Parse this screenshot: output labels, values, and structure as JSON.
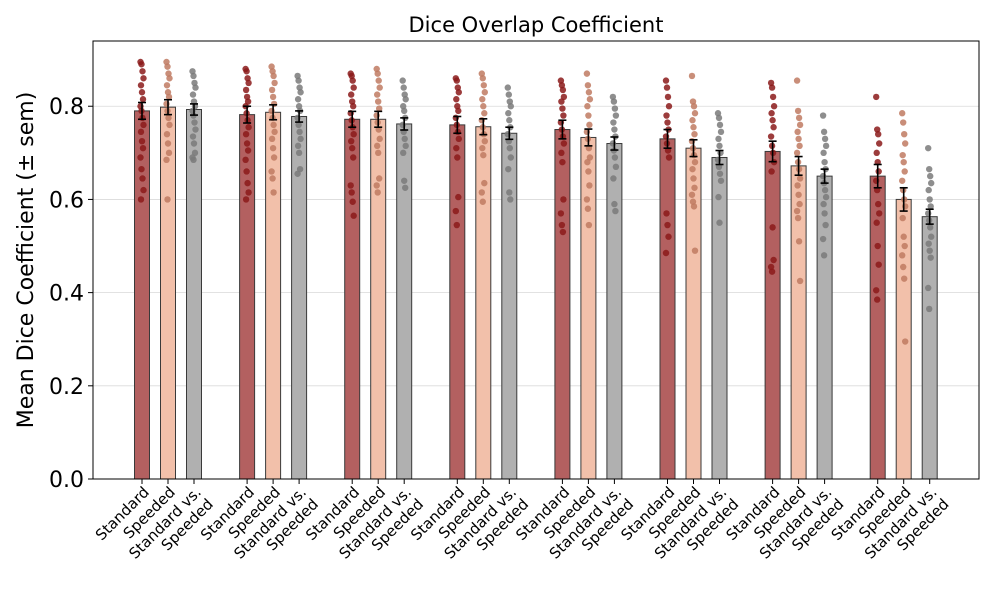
{
  "chart_data": {
    "type": "bar",
    "title": "Dice Overlap Coefficient",
    "xlabel": "",
    "ylabel": "Mean Dice Coefficient (± sem)",
    "ylim": [
      0,
      0.94
    ],
    "yticks": [
      "0.0",
      "0.2",
      "0.4",
      "0.6",
      "0.8"
    ],
    "grid": "horizontal",
    "group_count": 8,
    "bar_labels": [
      "Standard",
      "Speeded",
      "Standard vs.\nSpeeded"
    ],
    "series": [
      {
        "label": "Standard",
        "color": "#b36060",
        "dot_color": "#8b1a1a",
        "values": [
          0.79,
          0.782,
          0.772,
          0.76,
          0.75,
          0.73,
          0.703,
          0.65
        ],
        "sem": [
          0.018,
          0.018,
          0.017,
          0.018,
          0.02,
          0.02,
          0.022,
          0.025
        ],
        "points": [
          [
            0.895,
            0.89,
            0.875,
            0.86,
            0.845,
            0.83,
            0.815,
            0.8,
            0.79,
            0.775,
            0.76,
            0.745,
            0.725,
            0.71,
            0.69,
            0.665,
            0.645,
            0.62,
            0.6
          ],
          [
            0.88,
            0.875,
            0.86,
            0.85,
            0.835,
            0.82,
            0.81,
            0.8,
            0.785,
            0.77,
            0.755,
            0.74,
            0.72,
            0.705,
            0.685,
            0.66,
            0.635,
            0.615,
            0.6
          ],
          [
            0.87,
            0.865,
            0.855,
            0.84,
            0.825,
            0.81,
            0.8,
            0.785,
            0.77,
            0.755,
            0.74,
            0.725,
            0.71,
            0.69,
            0.63,
            0.615,
            0.595,
            0.565
          ],
          [
            0.86,
            0.855,
            0.84,
            0.83,
            0.815,
            0.8,
            0.79,
            0.775,
            0.76,
            0.745,
            0.73,
            0.71,
            0.69,
            0.605,
            0.575,
            0.545
          ],
          [
            0.855,
            0.845,
            0.835,
            0.82,
            0.81,
            0.795,
            0.78,
            0.765,
            0.75,
            0.735,
            0.72,
            0.7,
            0.68,
            0.6,
            0.57,
            0.545,
            0.53
          ],
          [
            0.855,
            0.84,
            0.82,
            0.8,
            0.78,
            0.765,
            0.75,
            0.735,
            0.72,
            0.705,
            0.69,
            0.57,
            0.545,
            0.52,
            0.485
          ],
          [
            0.85,
            0.84,
            0.82,
            0.8,
            0.785,
            0.77,
            0.755,
            0.735,
            0.715,
            0.7,
            0.68,
            0.66,
            0.54,
            0.47,
            0.455,
            0.445
          ],
          [
            0.82,
            0.75,
            0.74,
            0.72,
            0.7,
            0.68,
            0.66,
            0.64,
            0.62,
            0.59,
            0.57,
            0.55,
            0.5,
            0.46,
            0.405,
            0.385
          ]
        ]
      },
      {
        "label": "Speeded",
        "color": "#f2c0aa",
        "dot_color": "#c07a62",
        "values": [
          0.798,
          0.787,
          0.772,
          0.756,
          0.733,
          0.71,
          0.672,
          0.6
        ],
        "sem": [
          0.016,
          0.016,
          0.017,
          0.017,
          0.018,
          0.018,
          0.02,
          0.025
        ],
        "points": [
          [
            0.895,
            0.885,
            0.87,
            0.86,
            0.845,
            0.83,
            0.82,
            0.805,
            0.79,
            0.775,
            0.76,
            0.74,
            0.72,
            0.7,
            0.685,
            0.6
          ],
          [
            0.885,
            0.875,
            0.865,
            0.85,
            0.835,
            0.82,
            0.805,
            0.79,
            0.775,
            0.76,
            0.745,
            0.73,
            0.71,
            0.69,
            0.66,
            0.645,
            0.615
          ],
          [
            0.88,
            0.87,
            0.855,
            0.84,
            0.825,
            0.81,
            0.795,
            0.78,
            0.765,
            0.75,
            0.73,
            0.715,
            0.7,
            0.645,
            0.63,
            0.615
          ],
          [
            0.87,
            0.86,
            0.845,
            0.83,
            0.815,
            0.8,
            0.785,
            0.77,
            0.755,
            0.74,
            0.725,
            0.71,
            0.695,
            0.635,
            0.615,
            0.595
          ],
          [
            0.87,
            0.845,
            0.83,
            0.815,
            0.8,
            0.78,
            0.76,
            0.745,
            0.73,
            0.71,
            0.69,
            0.68,
            0.66,
            0.63,
            0.6,
            0.58,
            0.545
          ],
          [
            0.865,
            0.81,
            0.8,
            0.785,
            0.77,
            0.755,
            0.74,
            0.725,
            0.71,
            0.695,
            0.68,
            0.665,
            0.645,
            0.625,
            0.61,
            0.595,
            0.585,
            0.49
          ],
          [
            0.855,
            0.79,
            0.775,
            0.76,
            0.745,
            0.73,
            0.715,
            0.7,
            0.68,
            0.665,
            0.645,
            0.63,
            0.61,
            0.59,
            0.575,
            0.56,
            0.51,
            0.425
          ],
          [
            0.785,
            0.765,
            0.74,
            0.72,
            0.695,
            0.68,
            0.66,
            0.64,
            0.62,
            0.6,
            0.585,
            0.56,
            0.52,
            0.5,
            0.48,
            0.455,
            0.43,
            0.295
          ]
        ]
      },
      {
        "label": "Standard vs.\nSpeeded",
        "color": "#b0b0b0",
        "dot_color": "#7a7a7a",
        "values": [
          0.793,
          0.778,
          0.762,
          0.742,
          0.72,
          0.69,
          0.65,
          0.563
        ],
        "sem": [
          0.012,
          0.012,
          0.013,
          0.013,
          0.014,
          0.015,
          0.015,
          0.016
        ],
        "points": [
          [
            0.875,
            0.865,
            0.85,
            0.84,
            0.825,
            0.81,
            0.8,
            0.79,
            0.78,
            0.765,
            0.75,
            0.735,
            0.72,
            0.7,
            0.69,
            0.685
          ],
          [
            0.865,
            0.855,
            0.84,
            0.83,
            0.815,
            0.8,
            0.79,
            0.775,
            0.76,
            0.745,
            0.73,
            0.715,
            0.7,
            0.665,
            0.655
          ],
          [
            0.855,
            0.84,
            0.825,
            0.815,
            0.8,
            0.79,
            0.775,
            0.76,
            0.745,
            0.73,
            0.715,
            0.7,
            0.64,
            0.625
          ],
          [
            0.84,
            0.825,
            0.81,
            0.8,
            0.785,
            0.77,
            0.755,
            0.74,
            0.725,
            0.71,
            0.69,
            0.665,
            0.615,
            0.6
          ],
          [
            0.82,
            0.81,
            0.795,
            0.78,
            0.765,
            0.75,
            0.735,
            0.72,
            0.705,
            0.69,
            0.67,
            0.645,
            0.59,
            0.575
          ],
          [
            0.785,
            0.775,
            0.76,
            0.745,
            0.73,
            0.715,
            0.7,
            0.685,
            0.67,
            0.655,
            0.64,
            0.605,
            0.55
          ],
          [
            0.78,
            0.745,
            0.73,
            0.715,
            0.7,
            0.68,
            0.665,
            0.65,
            0.635,
            0.62,
            0.605,
            0.59,
            0.57,
            0.545,
            0.515,
            0.48
          ],
          [
            0.71,
            0.665,
            0.65,
            0.635,
            0.62,
            0.6,
            0.585,
            0.57,
            0.555,
            0.54,
            0.52,
            0.505,
            0.49,
            0.475,
            0.41,
            0.365
          ]
        ]
      }
    ]
  }
}
